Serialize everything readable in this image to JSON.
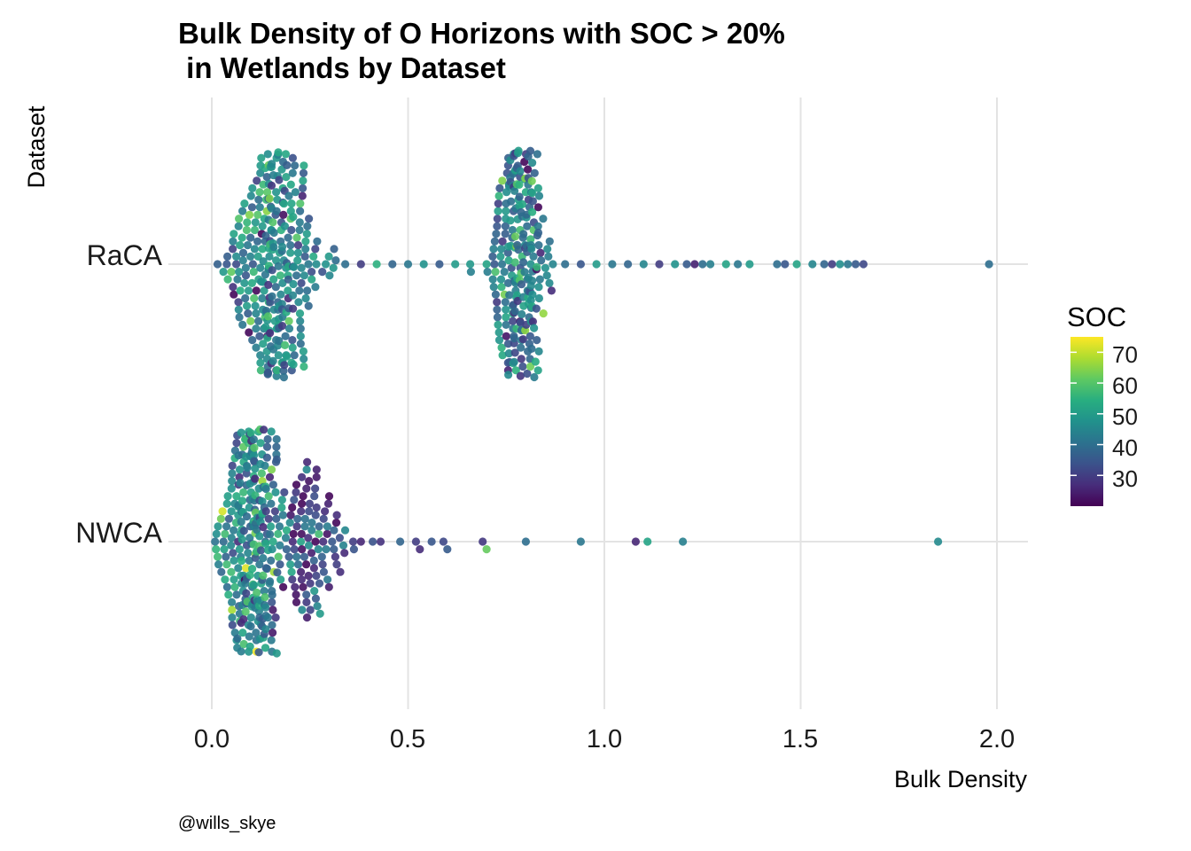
{
  "chart_data": {
    "type": "scatter",
    "subtype": "beeswarm",
    "title_line1": "Bulk Density of O Horizons with SOC > 20%",
    "title_line2": " in Wetlands by Dataset",
    "xlabel": "Bulk Density",
    "ylabel": "Dataset",
    "xlim": [
      -0.1,
      2.08
    ],
    "xticks": [
      "0.0",
      "0.5",
      "1.0",
      "1.5",
      "2.0"
    ],
    "xtick_values": [
      0.0,
      0.5,
      1.0,
      1.5,
      2.0
    ],
    "categories": [
      "RaCA",
      "NWCA"
    ],
    "grid": true,
    "color_variable": "SOC",
    "color_scale": "viridis",
    "color_range": [
      20,
      75
    ],
    "legend": {
      "title": "SOC",
      "labels": [
        "70",
        "60",
        "50",
        "40",
        "30"
      ],
      "values": [
        70,
        60,
        50,
        40,
        30
      ],
      "position": "right"
    },
    "caption": "@wills_skye",
    "groups": [
      {
        "name": "RaCA",
        "clusters": [
          {
            "center": 0.16,
            "spread": 0.055,
            "count": 300,
            "soc_mean": 45
          },
          {
            "center": 0.78,
            "spread": 0.035,
            "count": 240,
            "soc_mean": 43
          }
        ],
        "points": [
          {
            "x": 0.3,
            "soc": 45
          },
          {
            "x": 0.34,
            "soc": 40
          },
          {
            "x": 0.38,
            "soc": 30
          },
          {
            "x": 0.42,
            "soc": 55
          },
          {
            "x": 0.46,
            "soc": 38
          },
          {
            "x": 0.5,
            "soc": 42
          },
          {
            "x": 0.54,
            "soc": 48
          },
          {
            "x": 0.58,
            "soc": 36
          },
          {
            "x": 0.62,
            "soc": 50
          },
          {
            "x": 0.66,
            "soc": 44
          },
          {
            "x": 0.7,
            "soc": 52
          },
          {
            "x": 0.86,
            "soc": 46
          },
          {
            "x": 0.9,
            "soc": 40
          },
          {
            "x": 0.94,
            "soc": 35
          },
          {
            "x": 0.98,
            "soc": 50
          },
          {
            "x": 1.02,
            "soc": 42
          },
          {
            "x": 1.06,
            "soc": 38
          },
          {
            "x": 1.1,
            "soc": 45
          },
          {
            "x": 1.14,
            "soc": 30
          },
          {
            "x": 1.18,
            "soc": 48
          },
          {
            "x": 1.21,
            "soc": 36
          },
          {
            "x": 1.23,
            "soc": 25
          },
          {
            "x": 1.25,
            "soc": 40
          },
          {
            "x": 1.27,
            "soc": 44
          },
          {
            "x": 1.31,
            "soc": 52
          },
          {
            "x": 1.34,
            "soc": 42
          },
          {
            "x": 1.37,
            "soc": 50
          },
          {
            "x": 1.44,
            "soc": 40
          },
          {
            "x": 1.46,
            "soc": 35
          },
          {
            "x": 1.49,
            "soc": 52
          },
          {
            "x": 1.53,
            "soc": 45
          },
          {
            "x": 1.56,
            "soc": 38
          },
          {
            "x": 1.58,
            "soc": 30
          },
          {
            "x": 1.6,
            "soc": 47
          },
          {
            "x": 1.62,
            "soc": 42
          },
          {
            "x": 1.64,
            "soc": 36
          },
          {
            "x": 1.66,
            "soc": 32
          },
          {
            "x": 1.98,
            "soc": 40
          }
        ]
      },
      {
        "name": "NWCA",
        "clusters": [
          {
            "center": 0.1,
            "spread": 0.04,
            "count": 270,
            "soc_mean": 46
          },
          {
            "center": 0.24,
            "spread": 0.06,
            "count": 110,
            "soc_mean": 32
          }
        ],
        "points": [
          {
            "x": 0.36,
            "soc": 30
          },
          {
            "x": 0.38,
            "soc": 26
          },
          {
            "x": 0.41,
            "soc": 34
          },
          {
            "x": 0.43,
            "soc": 28
          },
          {
            "x": 0.48,
            "soc": 38
          },
          {
            "x": 0.52,
            "soc": 30
          },
          {
            "x": 0.53,
            "soc": 27
          },
          {
            "x": 0.56,
            "soc": 35
          },
          {
            "x": 0.59,
            "soc": 32
          },
          {
            "x": 0.6,
            "soc": 36
          },
          {
            "x": 0.69,
            "soc": 29
          },
          {
            "x": 0.7,
            "soc": 62
          },
          {
            "x": 0.8,
            "soc": 40
          },
          {
            "x": 0.94,
            "soc": 42
          },
          {
            "x": 1.08,
            "soc": 26
          },
          {
            "x": 1.11,
            "soc": 52
          },
          {
            "x": 1.2,
            "soc": 44
          },
          {
            "x": 1.85,
            "soc": 46
          }
        ]
      }
    ]
  }
}
